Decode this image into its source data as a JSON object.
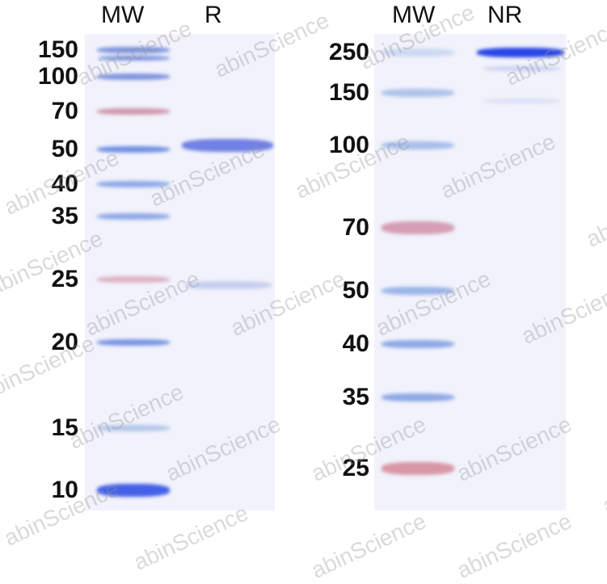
{
  "left_gel": {
    "headers": [
      "MW",
      "R"
    ],
    "markers": [
      "150",
      "100",
      "70",
      "50",
      "40",
      "35",
      "25",
      "20",
      "15",
      "10"
    ]
  },
  "right_gel": {
    "headers": [
      "MW",
      "NR"
    ],
    "markers": [
      "250",
      "150",
      "100",
      "70",
      "50",
      "40",
      "35",
      "25"
    ]
  },
  "watermark": "abinScience",
  "colors": {
    "band_blue": "#3a55e0",
    "marker_pink": "#c0607a",
    "gel_bg": "#f1f2fb"
  }
}
